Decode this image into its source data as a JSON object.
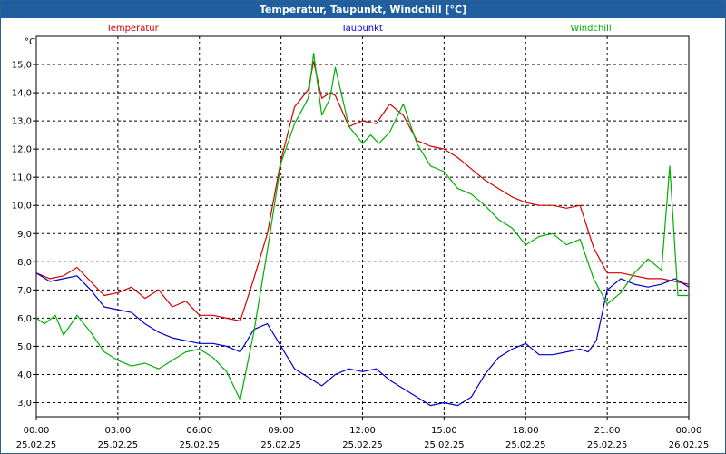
{
  "window": {
    "title": "Temperatur, Taupunkt, Windchill [°C]"
  },
  "chart_data": {
    "type": "line",
    "title": "Temperatur, Taupunkt, Windchill [°C]",
    "ylabel": "°C",
    "ylim": [
      2.5,
      16.0
    ],
    "xlim": [
      0,
      24
    ],
    "grid": true,
    "y_ticks": [
      "3,0",
      "4,0",
      "5,0",
      "6,0",
      "7,0",
      "8,0",
      "9,0",
      "10,0",
      "11,0",
      "12,0",
      "13,0",
      "14,0",
      "15,0"
    ],
    "y_tick_values": [
      3,
      4,
      5,
      6,
      7,
      8,
      9,
      10,
      11,
      12,
      13,
      14,
      15
    ],
    "x_tick_values": [
      0,
      3,
      6,
      9,
      12,
      15,
      18,
      21,
      24
    ],
    "x_tick_times": [
      "00:00",
      "03:00",
      "06:00",
      "09:00",
      "12:00",
      "15:00",
      "18:00",
      "21:00",
      "00:00"
    ],
    "x_tick_dates": [
      "25.02.25",
      "25.02.25",
      "25.02.25",
      "25.02.25",
      "25.02.25",
      "25.02.25",
      "25.02.25",
      "25.02.25",
      "26.02.25"
    ],
    "series": [
      {
        "name": "Temperatur",
        "color": "#d40000",
        "x": [
          0,
          0.5,
          1,
          1.5,
          2,
          2.5,
          3,
          3.5,
          4,
          4.5,
          5,
          5.5,
          6,
          6.5,
          7,
          7.5,
          8,
          8.5,
          9,
          9.5,
          10,
          10.2,
          10.5,
          10.8,
          11,
          11.5,
          12,
          12.5,
          13,
          13.5,
          14,
          14.5,
          15,
          15.5,
          16,
          16.5,
          17,
          17.5,
          18,
          18.5,
          19,
          19.5,
          20,
          20.5,
          21,
          21.5,
          22,
          22.5,
          23,
          23.5,
          24
        ],
        "values": [
          7.6,
          7.4,
          7.5,
          7.8,
          7.3,
          6.8,
          6.9,
          7.1,
          6.7,
          7.0,
          6.4,
          6.6,
          6.1,
          6.1,
          6.0,
          5.9,
          7.4,
          9.0,
          11.6,
          13.5,
          14.1,
          15.1,
          13.8,
          14.0,
          13.9,
          12.8,
          13.0,
          12.9,
          13.6,
          13.2,
          12.3,
          12.1,
          12.0,
          11.7,
          11.3,
          10.9,
          10.6,
          10.3,
          10.1,
          10.0,
          10.0,
          9.9,
          10.0,
          8.5,
          7.6,
          7.6,
          7.5,
          7.4,
          7.4,
          7.3,
          7.2
        ]
      },
      {
        "name": "Taupunkt",
        "color": "#0000cc",
        "x": [
          0,
          0.5,
          1,
          1.5,
          2,
          2.5,
          3,
          3.5,
          4,
          4.5,
          5,
          5.5,
          6,
          6.5,
          7,
          7.5,
          8,
          8.5,
          9,
          9.5,
          10,
          10.5,
          11,
          11.5,
          12,
          12.5,
          13,
          13.5,
          14,
          14.5,
          15,
          15.5,
          16,
          16.5,
          17,
          17.5,
          18,
          18.5,
          19,
          19.5,
          20,
          20.3,
          20.6,
          21,
          21.5,
          22,
          22.5,
          23,
          23.5,
          24
        ],
        "values": [
          7.6,
          7.3,
          7.4,
          7.5,
          7.0,
          6.4,
          6.3,
          6.2,
          5.8,
          5.5,
          5.3,
          5.2,
          5.1,
          5.1,
          5.0,
          4.8,
          5.6,
          5.8,
          5.0,
          4.2,
          3.9,
          3.6,
          4.0,
          4.2,
          4.1,
          4.2,
          3.8,
          3.5,
          3.2,
          2.9,
          3.0,
          2.9,
          3.2,
          4.0,
          4.6,
          4.9,
          5.1,
          4.7,
          4.7,
          4.8,
          4.9,
          4.8,
          5.2,
          7.0,
          7.4,
          7.2,
          7.1,
          7.2,
          7.4,
          7.1
        ]
      },
      {
        "name": "Windchill",
        "color": "#00b000",
        "x": [
          0,
          0.3,
          0.7,
          1,
          1.5,
          2,
          2.5,
          3,
          3.5,
          4,
          4.5,
          5,
          5.5,
          6,
          6.5,
          7,
          7.5,
          8,
          8.5,
          9,
          9.5,
          10,
          10.2,
          10.5,
          10.8,
          11,
          11.5,
          12,
          12.3,
          12.6,
          13,
          13.5,
          14,
          14.5,
          15,
          15.5,
          16,
          16.5,
          17,
          17.5,
          18,
          18.5,
          19,
          19.5,
          20,
          20.5,
          21,
          21.5,
          22,
          22.5,
          23,
          23.3,
          23.6,
          24
        ],
        "values": [
          6.0,
          5.8,
          6.1,
          5.4,
          6.1,
          5.5,
          4.8,
          4.5,
          4.3,
          4.4,
          4.2,
          4.5,
          4.8,
          4.9,
          4.6,
          4.1,
          3.1,
          5.5,
          8.4,
          11.5,
          12.9,
          13.8,
          15.4,
          13.2,
          13.8,
          14.9,
          12.8,
          12.2,
          12.5,
          12.2,
          12.6,
          13.6,
          12.2,
          11.4,
          11.2,
          10.6,
          10.4,
          10.0,
          9.5,
          9.2,
          8.6,
          8.9,
          9.0,
          8.6,
          8.8,
          7.4,
          6.5,
          6.9,
          7.6,
          8.1,
          7.7,
          11.4,
          6.8,
          6.8
        ]
      }
    ]
  }
}
